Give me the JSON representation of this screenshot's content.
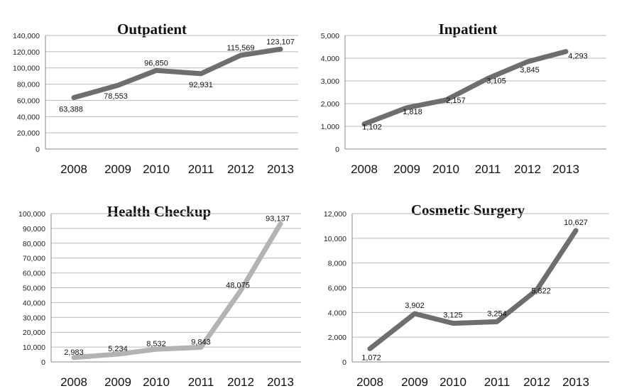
{
  "chart_data": [
    {
      "type": "line",
      "title": "Outpatient",
      "categories": [
        "2008",
        "2009",
        "2010",
        "2011",
        "2012",
        "2013"
      ],
      "values": [
        63388,
        78553,
        96850,
        92931,
        115569,
        123107
      ],
      "value_labels": [
        "63,388",
        "78,553",
        "96,850",
        "92,931",
        "115,569",
        "123,107"
      ],
      "ylim": [
        0,
        140000
      ],
      "yticks": [
        "0",
        "20,000",
        "40,000",
        "60,000",
        "80,000",
        "100,000",
        "120,000",
        "140,000"
      ],
      "grid": true,
      "color": "#6e6e6e"
    },
    {
      "type": "line",
      "title": "Inpatient",
      "categories": [
        "2008",
        "2009",
        "2010",
        "2011",
        "2012",
        "2013"
      ],
      "values": [
        1102,
        1818,
        2157,
        3105,
        3845,
        4293
      ],
      "value_labels": [
        "1,102",
        "1,818",
        "2,157",
        "3,105",
        "3,845",
        "4,293"
      ],
      "ylim": [
        0,
        5000
      ],
      "yticks": [
        "0",
        "1,000",
        "2,000",
        "3,000",
        "4,000",
        "5,000"
      ],
      "grid": true,
      "color": "#6e6e6e"
    },
    {
      "type": "line",
      "title": "Health Checkup",
      "categories": [
        "2008",
        "2009",
        "2010",
        "2011",
        "2012",
        "2013"
      ],
      "values": [
        2983,
        5234,
        8532,
        9843,
        48075,
        93137
      ],
      "value_labels": [
        "2,983",
        "5,234",
        "8,532",
        "9,843",
        "48,075",
        "93,137"
      ],
      "ylim": [
        0,
        100000
      ],
      "yticks": [
        "0",
        "10,000",
        "20,000",
        "30,000",
        "40,000",
        "50,000",
        "60,000",
        "70,000",
        "80,000",
        "90,000",
        "100,000"
      ],
      "grid": true,
      "color": "#b3b3b3"
    },
    {
      "type": "line",
      "title": "Cosmetic Surgery",
      "categories": [
        "2008",
        "2009",
        "2010",
        "2011",
        "2012",
        "2013"
      ],
      "values": [
        1072,
        3902,
        3125,
        3254,
        5822,
        10627
      ],
      "value_labels": [
        "1,072",
        "3,902",
        "3,125",
        "3,254",
        "5,822",
        "10,627"
      ],
      "ylim": [
        0,
        12000
      ],
      "yticks": [
        "0",
        "2,000",
        "4,000",
        "6,000",
        "8,000",
        "10,000",
        "12,000"
      ],
      "grid": true,
      "color": "#6e6e6e"
    }
  ]
}
